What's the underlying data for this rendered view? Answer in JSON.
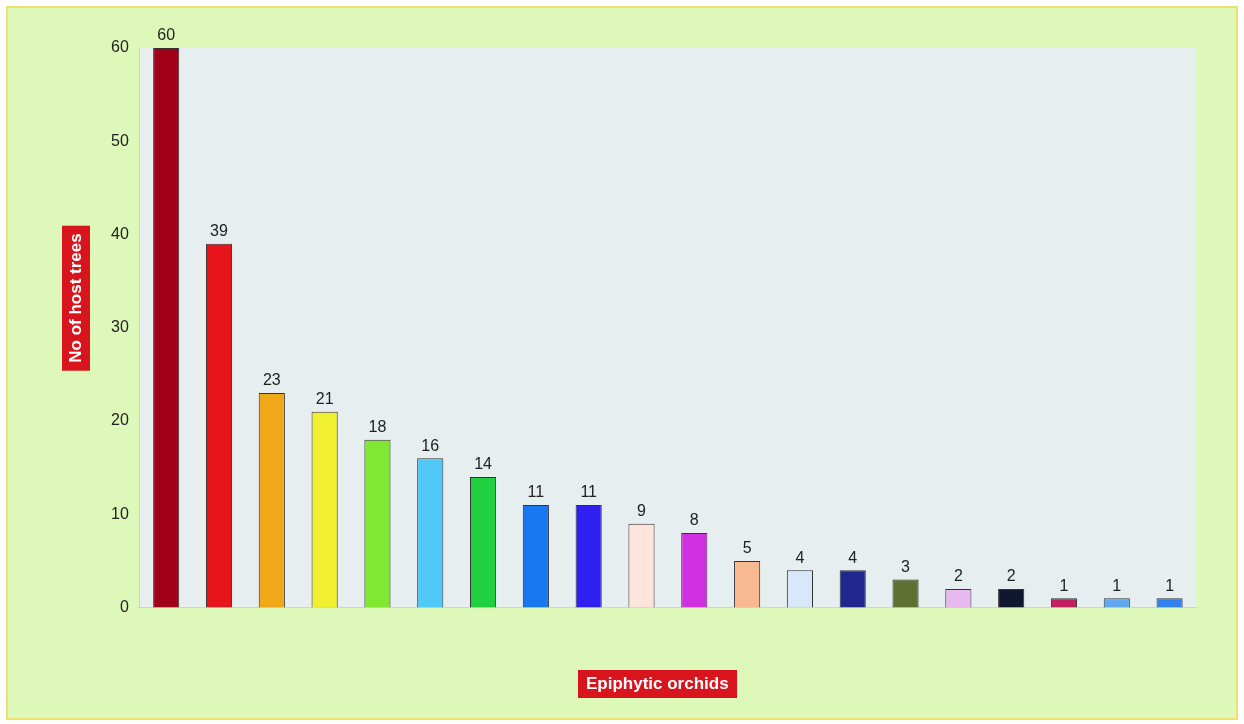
{
  "chart_data": {
    "type": "bar",
    "xlabel": "Epiphytic orchids",
    "ylabel": "No of host trees",
    "categories": [
      null,
      null,
      null,
      null,
      null,
      null,
      null,
      null,
      null,
      null,
      null,
      null,
      null,
      null,
      null,
      null,
      null,
      null,
      null,
      null
    ],
    "values": [
      60,
      39,
      23,
      21,
      18,
      16,
      14,
      11,
      11,
      9,
      8,
      5,
      4,
      4,
      3,
      2,
      2,
      1,
      1,
      1
    ],
    "colors": [
      "#a00018",
      "#e8141c",
      "#f0a818",
      "#f0f030",
      "#80e830",
      "#50c8f8",
      "#20d040",
      "#1878f0",
      "#3020f0",
      "#fde4dc",
      "#d030e0",
      "#f8b890",
      "#d8e8f8",
      "#202890",
      "#607030",
      "#e8b8f0",
      "#101830",
      "#c02060",
      "#60a8f0",
      "#3080f0"
    ],
    "ylim": [
      0,
      60
    ],
    "yticks": [
      0,
      10,
      20,
      30,
      40,
      50,
      60
    ],
    "data_labels": true,
    "grid": false,
    "legend": false
  }
}
